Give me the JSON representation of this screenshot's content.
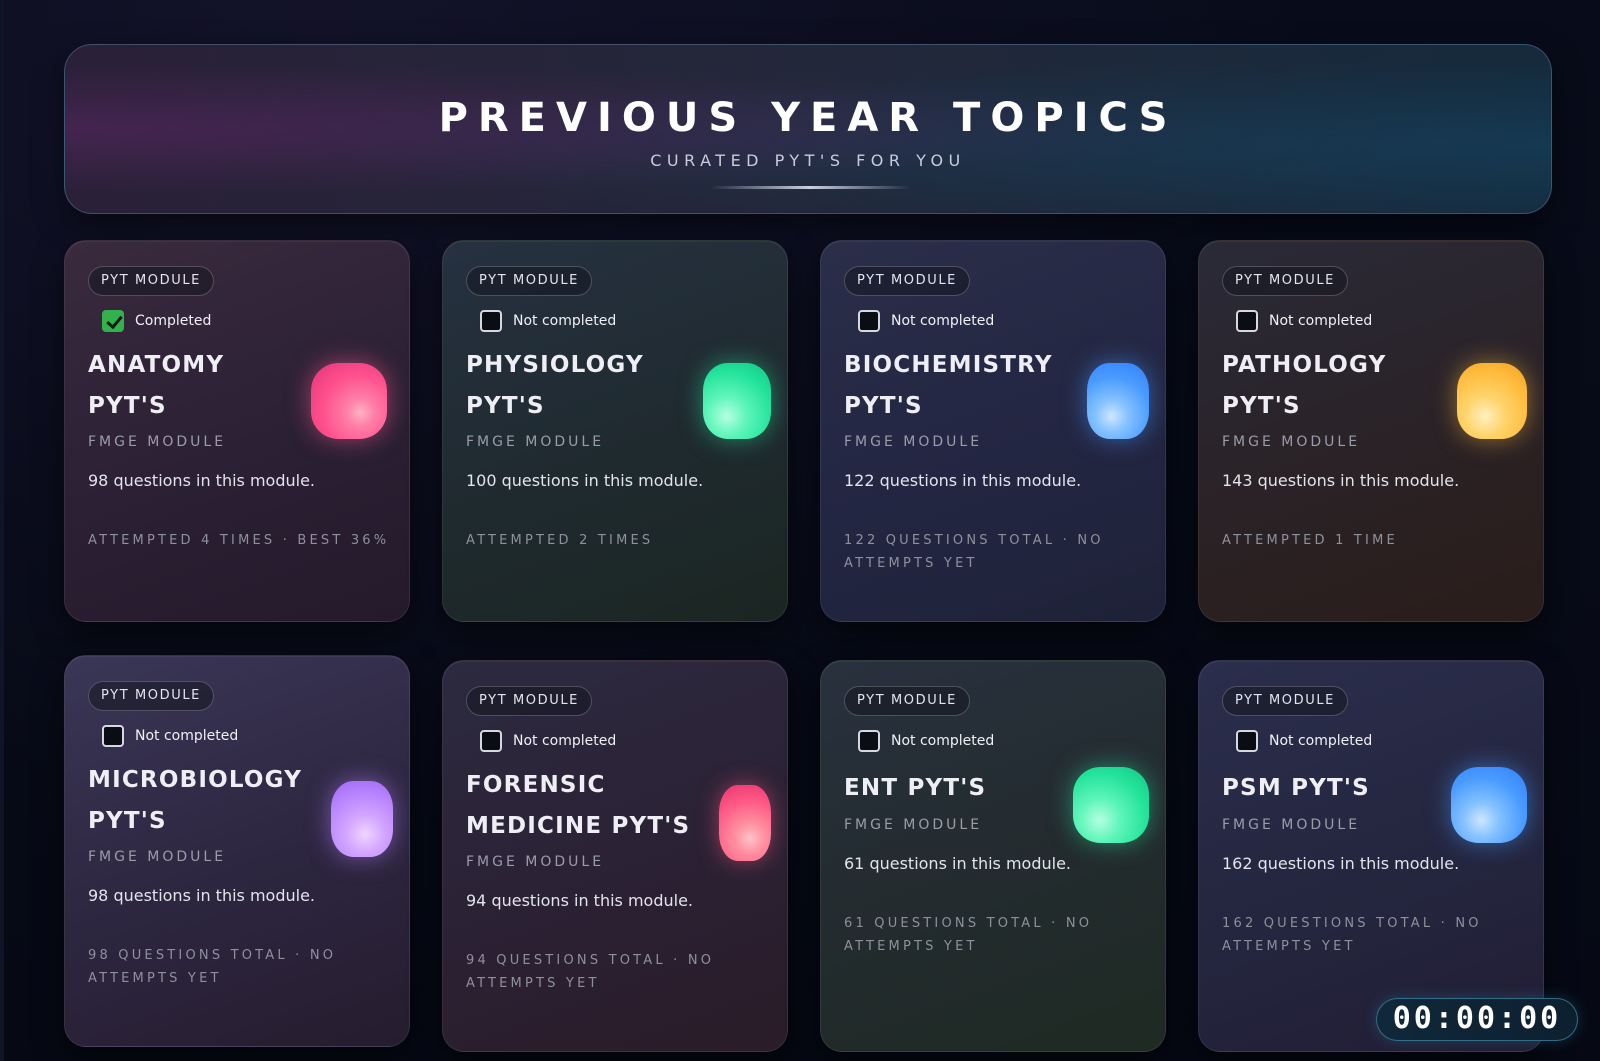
{
  "header": {
    "title": "PREVIOUS YEAR TOPICS",
    "subtitle": "CURATED PYT'S FOR YOU"
  },
  "colors": {
    "background": "#070b17",
    "completed_check": "#33b24c",
    "timer_border": "#50aac8"
  },
  "cards": [
    {
      "badge": "PYT MODULE",
      "status": "Completed",
      "completed": true,
      "title_line1": "ANATOMY",
      "title_line2": "PYT'S",
      "subtitle": "FMGE MODULE",
      "questions": "98 questions in this module.",
      "attempts_line1": "ATTEMPTED 4 TIMES · BEST 36%",
      "attempts_line2": "",
      "icon": "pink-blob-icon"
    },
    {
      "badge": "PYT MODULE",
      "status": "Not completed",
      "completed": false,
      "title_line1": "PHYSIOLOGY",
      "title_line2": "PYT'S",
      "subtitle": "FMGE MODULE",
      "questions": "100 questions in this module.",
      "attempts_line1": "ATTEMPTED 2 TIMES",
      "attempts_line2": "",
      "icon": "green-blob-icon"
    },
    {
      "badge": "PYT MODULE",
      "status": "Not completed",
      "completed": false,
      "title_line1": "BIOCHEMISTRY",
      "title_line2": "PYT'S",
      "subtitle": "FMGE MODULE",
      "questions": "122 questions in this module.",
      "attempts_line1": "122 QUESTIONS TOTAL · NO",
      "attempts_line2": "ATTEMPTS YET",
      "icon": "blue-blob-icon"
    },
    {
      "badge": "PYT MODULE",
      "status": "Not completed",
      "completed": false,
      "title_line1": "PATHOLOGY",
      "title_line2": "PYT'S",
      "subtitle": "FMGE MODULE",
      "questions": "143 questions in this module.",
      "attempts_line1": "ATTEMPTED 1 TIME",
      "attempts_line2": "",
      "icon": "amber-blob-icon"
    },
    {
      "badge": "PYT MODULE",
      "status": "Not completed",
      "completed": false,
      "title_line1": "MICROBIOLOGY",
      "title_line2": "PYT'S",
      "subtitle": "FMGE MODULE",
      "questions": "98 questions in this module.",
      "attempts_line1": "98 QUESTIONS TOTAL · NO",
      "attempts_line2": "ATTEMPTS YET",
      "icon": "purple-blob-icon"
    },
    {
      "badge": "PYT MODULE",
      "status": "Not completed",
      "completed": false,
      "title_line1": "FORENSIC",
      "title_line2": "MEDICINE PYT'S",
      "subtitle": "FMGE MODULE",
      "questions": "94 questions in this module.",
      "attempts_line1": "94 QUESTIONS TOTAL · NO",
      "attempts_line2": "ATTEMPTS YET",
      "icon": "pink-blob-icon"
    },
    {
      "badge": "PYT MODULE",
      "status": "Not completed",
      "completed": false,
      "title_line1": "ENT PYT'S",
      "title_line2": "",
      "subtitle": "FMGE MODULE",
      "questions": "61 questions in this module.",
      "attempts_line1": "61 QUESTIONS TOTAL · NO",
      "attempts_line2": "ATTEMPTS YET",
      "icon": "green-blob-icon"
    },
    {
      "badge": "PYT MODULE",
      "status": "Not completed",
      "completed": false,
      "title_line1": "PSM PYT'S",
      "title_line2": "",
      "subtitle": "FMGE MODULE",
      "questions": "162 questions in this module.",
      "attempts_line1": "162 QUESTIONS TOTAL · NO",
      "attempts_line2": "ATTEMPTS YET",
      "icon": "blue-blob-icon"
    }
  ],
  "timer": {
    "value": "00:00:00"
  }
}
